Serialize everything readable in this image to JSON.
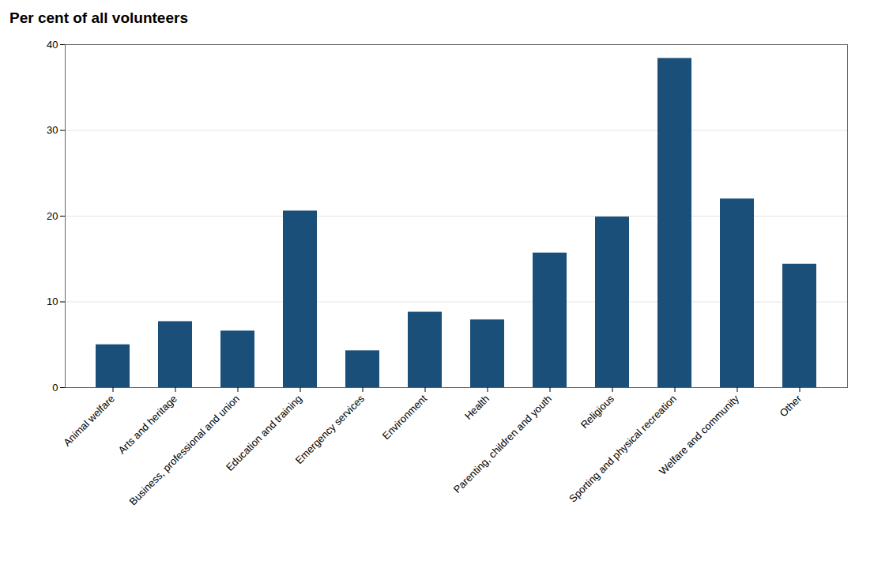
{
  "chart_data": {
    "type": "bar",
    "title": "Per cent of all volunteers",
    "categories": [
      "Animal welfare",
      "Arts and heritage",
      "Business, professional and union",
      "Education and training",
      "Emergency services",
      "Environment",
      "Health",
      "Parenting, children and youth",
      "Religious",
      "Sporting and physical recreation",
      "Welfare and community",
      "Other"
    ],
    "values": [
      5.0,
      7.7,
      6.6,
      20.6,
      4.3,
      8.8,
      7.9,
      15.7,
      19.9,
      38.4,
      22.0,
      14.4
    ],
    "color": "#1a4f7a",
    "ylim": [
      0,
      40
    ],
    "yticks": [
      0,
      10,
      20,
      30,
      40
    ],
    "grid": true
  }
}
